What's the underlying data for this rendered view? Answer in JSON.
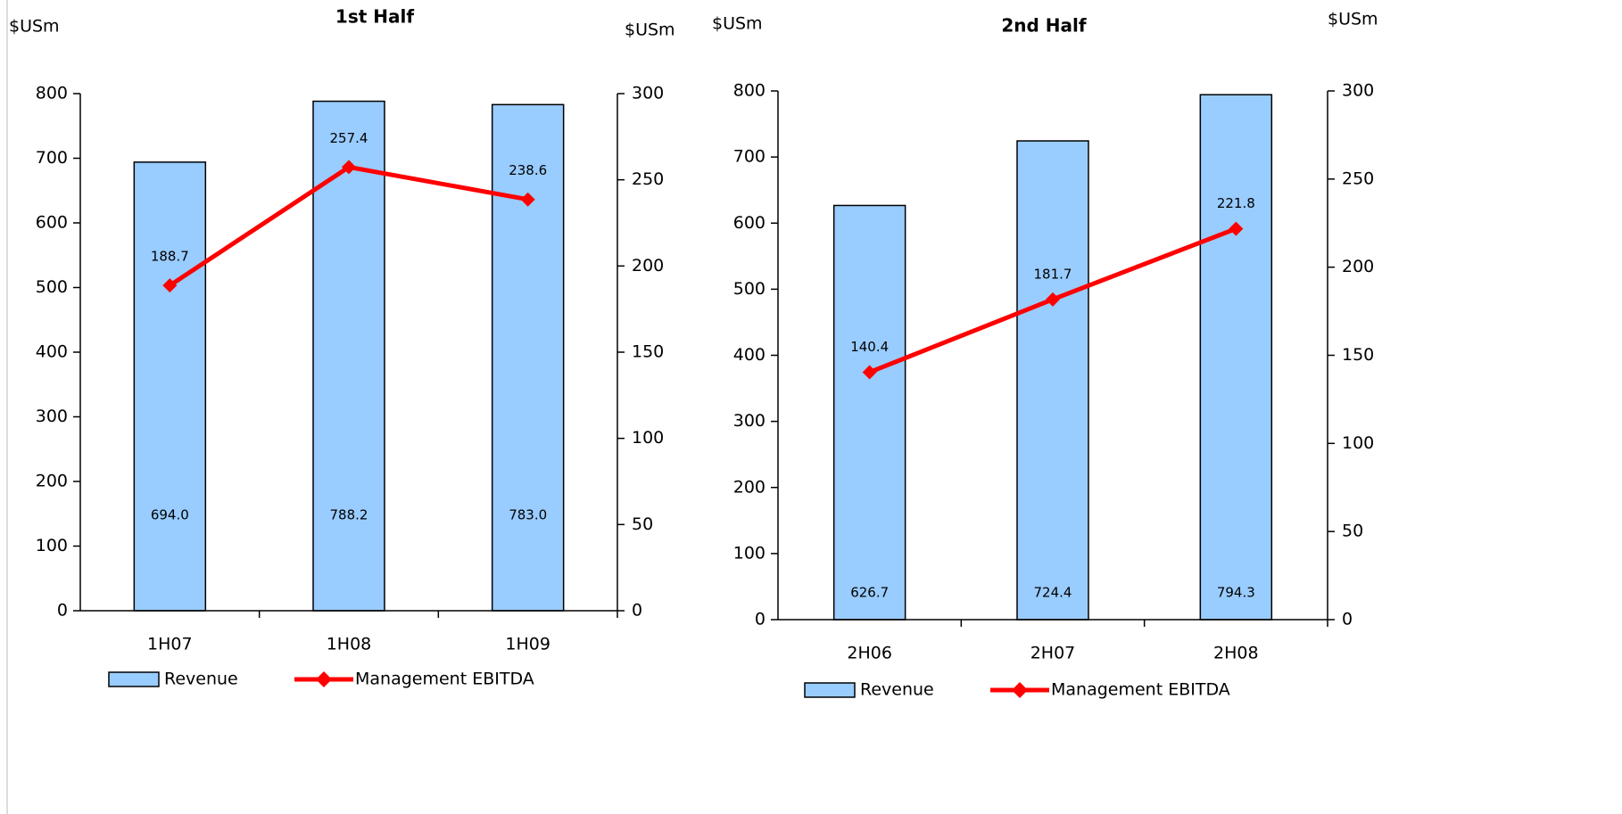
{
  "chart_data": [
    {
      "type": "bar-line",
      "title": "1st Half",
      "y_label": "$USm",
      "y2_label": "$USm",
      "categories": [
        "1H07",
        "1H08",
        "1H09"
      ],
      "series": [
        {
          "name": "Revenue",
          "type": "bar",
          "color": "#99ccff",
          "values": [
            694.0,
            788.2,
            783.0
          ],
          "value_labels": [
            "694.0",
            "788.2",
            "783.0"
          ]
        },
        {
          "name": "Management EBITDA",
          "type": "line",
          "axis": "y2",
          "color": "#ff0000",
          "values": [
            188.7,
            257.4,
            238.6
          ]
        }
      ],
      "ylim": [
        0,
        800
      ],
      "yticks": [
        0,
        100,
        200,
        300,
        400,
        500,
        600,
        700,
        800
      ],
      "y2lim": [
        0,
        300
      ],
      "y2ticks": [
        0,
        50,
        100,
        150,
        200,
        250,
        300
      ],
      "legend": "bottom"
    },
    {
      "type": "bar-line",
      "title": "2nd Half",
      "y_label": "$USm",
      "y2_label": "$USm",
      "categories": [
        "2H06",
        "2H07",
        "2H08"
      ],
      "series": [
        {
          "name": "Revenue",
          "type": "bar",
          "color": "#99ccff",
          "values": [
            626.7,
            724.4,
            794.3
          ],
          "value_labels": [
            "626.7",
            "724.4",
            "794.3"
          ]
        },
        {
          "name": "Management EBITDA",
          "type": "line",
          "axis": "y2",
          "color": "#ff0000",
          "values": [
            140.4,
            181.7,
            221.8
          ]
        }
      ],
      "ylim": [
        0,
        800
      ],
      "yticks": [
        0,
        100,
        200,
        300,
        400,
        500,
        600,
        700,
        800
      ],
      "y2lim": [
        0,
        300
      ],
      "y2ticks": [
        0,
        50,
        100,
        150,
        200,
        250,
        300
      ],
      "legend": "bottom"
    }
  ]
}
